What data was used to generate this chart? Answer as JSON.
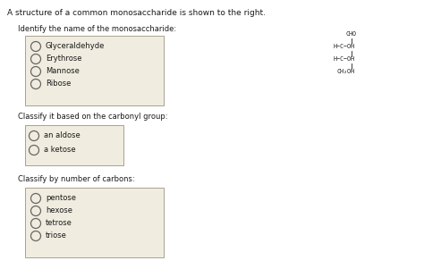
{
  "title": "A structure of a common monosaccharide is shown to the right.",
  "bg_color": "#ffffff",
  "box_bg": "#f0ede0",
  "box_edge": "#aaa090",
  "section1_label": "Identify the name of the monosaccharide:",
  "section1_options": [
    "Glyceraldehyde",
    "Erythrose",
    "Mannose",
    "Ribose"
  ],
  "section2_label": "Classify it based on the carbonyl group:",
  "section2_options": [
    "an aldose",
    "a ketose"
  ],
  "section3_label": "Classify by number of carbons:",
  "section3_options": [
    "pentose",
    "hexose",
    "tetrose",
    "triose"
  ],
  "text_color": "#1a1a1a",
  "circle_color": "#666666",
  "title_fontsize": 6.5,
  "section_label_fontsize": 6.0,
  "option_fontsize": 6.0,
  "struct_fontsize": 4.8
}
